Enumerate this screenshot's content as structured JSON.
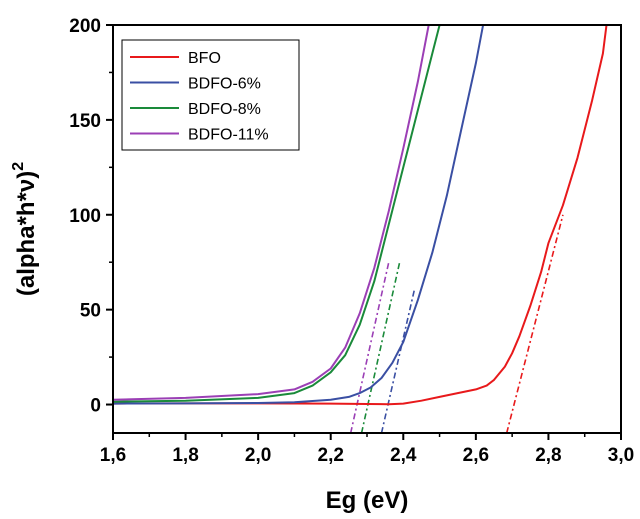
{
  "chart_data": {
    "type": "line",
    "title": "",
    "xlabel": "Eg (eV)",
    "ylabel_main": "(alpha*h*ν)",
    "ylabel_sup": "2",
    "xlim": [
      1.6,
      3.0
    ],
    "ylim": [
      -15,
      200
    ],
    "x_ticks": [
      1.6,
      1.8,
      2.0,
      2.2,
      2.4,
      2.6,
      2.8,
      3.0
    ],
    "x_tick_labels": [
      "1,6",
      "1,8",
      "2,0",
      "2,2",
      "2,4",
      "2,6",
      "2,8",
      "3,0"
    ],
    "y_ticks": [
      0,
      50,
      100,
      150,
      200
    ],
    "y_tick_labels": [
      "0",
      "50",
      "100",
      "150",
      "200"
    ],
    "grid": false,
    "legend_position": "top-left",
    "series": [
      {
        "name": "BFO",
        "color": "#e8191b",
        "x": [
          1.6,
          1.8,
          2.0,
          2.2,
          2.3,
          2.36,
          2.4,
          2.45,
          2.5,
          2.55,
          2.6,
          2.63,
          2.65,
          2.68,
          2.7,
          2.72,
          2.75,
          2.78,
          2.8,
          2.84,
          2.88,
          2.92,
          2.95,
          2.96
        ],
        "y": [
          0.5,
          0.6,
          0.6,
          0.5,
          0.3,
          0.2,
          0.5,
          2,
          4,
          6,
          8,
          10,
          13,
          20,
          27,
          36,
          52,
          70,
          85,
          105,
          130,
          160,
          185,
          200
        ]
      },
      {
        "name": "BDFO-6%",
        "color": "#3a4fa3",
        "x": [
          1.6,
          1.8,
          2.0,
          2.1,
          2.2,
          2.25,
          2.28,
          2.31,
          2.34,
          2.37,
          2.4,
          2.44,
          2.48,
          2.52,
          2.56,
          2.6,
          2.62
        ],
        "y": [
          0.5,
          0.6,
          0.8,
          1.2,
          2.5,
          4,
          6,
          9,
          14,
          22,
          33,
          55,
          80,
          110,
          145,
          180,
          200
        ]
      },
      {
        "name": "BDFO-8%",
        "color": "#1a8a3a",
        "x": [
          1.6,
          1.8,
          2.0,
          2.1,
          2.15,
          2.2,
          2.24,
          2.28,
          2.32,
          2.36,
          2.4,
          2.44,
          2.48,
          2.5
        ],
        "y": [
          1.5,
          2,
          3.5,
          6,
          10,
          17,
          26,
          42,
          65,
          95,
          125,
          155,
          185,
          200
        ]
      },
      {
        "name": "BDFO-11%",
        "color": "#9b3fb5",
        "x": [
          1.6,
          1.8,
          2.0,
          2.1,
          2.15,
          2.2,
          2.24,
          2.28,
          2.32,
          2.36,
          2.4,
          2.44,
          2.47
        ],
        "y": [
          2.5,
          3.5,
          5.5,
          8,
          12,
          19,
          30,
          48,
          72,
          102,
          135,
          170,
          200
        ]
      }
    ],
    "fit_lines": [
      {
        "series": "BFO",
        "color": "#e8191b",
        "x": [
          2.685,
          2.84
        ],
        "y": [
          -15,
          100
        ]
      },
      {
        "series": "BDFO-6%",
        "color": "#3a4fa3",
        "x": [
          2.34,
          2.43
        ],
        "y": [
          -15,
          60
        ]
      },
      {
        "series": "BDFO-8%",
        "color": "#1a8a3a",
        "x": [
          2.285,
          2.39
        ],
        "y": [
          -15,
          75
        ]
      },
      {
        "series": "BDFO-11%",
        "color": "#9b3fb5",
        "x": [
          2.255,
          2.36
        ],
        "y": [
          -15,
          75
        ]
      }
    ]
  }
}
